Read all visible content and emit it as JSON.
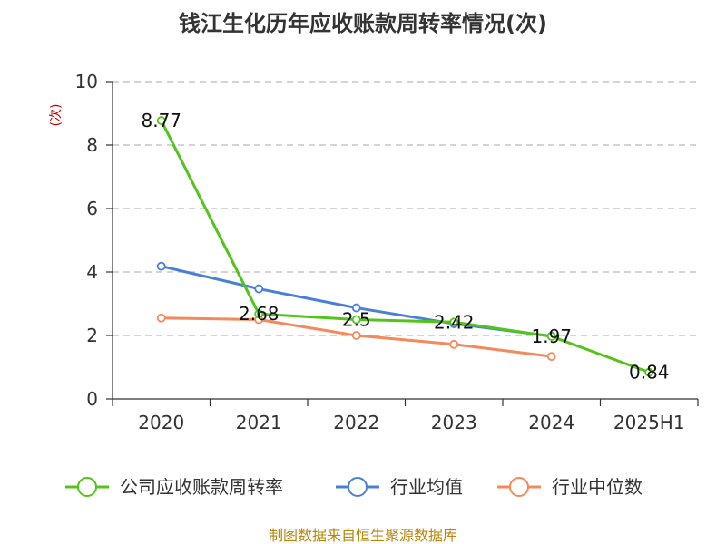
{
  "chart_data": {
    "type": "line",
    "title": "钱江生化历年应收账款周转率情况(次)",
    "ylabel": "(次)",
    "xlabel": "",
    "categories": [
      "2020",
      "2021",
      "2022",
      "2023",
      "2024",
      "2025H1"
    ],
    "ylim": [
      0,
      10
    ],
    "yticks": [
      0,
      2,
      4,
      6,
      8,
      10
    ],
    "grid": true,
    "legend_position": "bottom",
    "series": [
      {
        "name": "公司应收账款周转率",
        "color": "#52c41a",
        "values": [
          8.77,
          2.68,
          2.5,
          2.42,
          1.97,
          0.84
        ],
        "labels": [
          "8.77",
          "2.68",
          "2.5",
          "2.42",
          "1.97",
          "0.84"
        ]
      },
      {
        "name": "行业均值",
        "color": "#4a7fd6",
        "values": [
          4.18,
          3.47,
          2.87,
          2.37,
          1.98,
          null
        ]
      },
      {
        "name": "行业中位数",
        "color": "#f5895a",
        "values": [
          2.55,
          2.5,
          2.0,
          1.72,
          1.34,
          null
        ]
      }
    ]
  },
  "source": "制图数据来自恒生聚源数据库"
}
